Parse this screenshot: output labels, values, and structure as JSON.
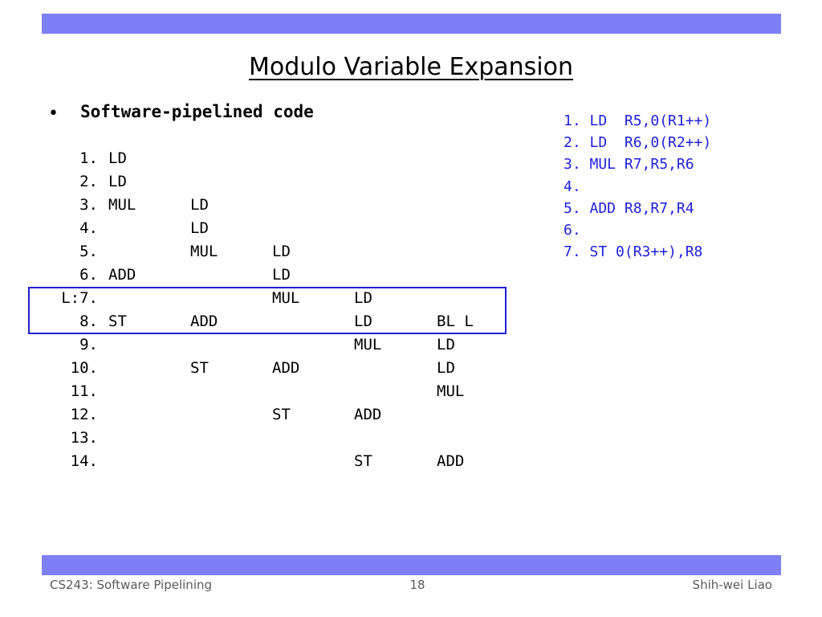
{
  "slide": {
    "title": "Modulo Variable Expansion",
    "bullet_marker": "•",
    "bullet_text": "Software-pipelined code"
  },
  "schedule": [
    {
      "num": "1.",
      "cells": [
        "LD",
        "",
        "",
        "",
        ""
      ]
    },
    {
      "num": "2.",
      "cells": [
        "LD",
        "",
        "",
        "",
        ""
      ]
    },
    {
      "num": "3.",
      "cells": [
        "MUL",
        "LD",
        "",
        "",
        ""
      ]
    },
    {
      "num": "4.",
      "cells": [
        "",
        "LD",
        "",
        "",
        ""
      ]
    },
    {
      "num": "5.",
      "cells": [
        "",
        "MUL",
        "LD",
        "",
        ""
      ]
    },
    {
      "num": "6.",
      "cells": [
        "ADD",
        "",
        "LD",
        "",
        ""
      ]
    },
    {
      "num": "L:7.",
      "cells": [
        "",
        "",
        "MUL",
        "LD",
        ""
      ]
    },
    {
      "num": "8.",
      "cells": [
        "ST",
        "ADD",
        "",
        "LD",
        "BL L"
      ]
    },
    {
      "num": "9.",
      "cells": [
        "",
        "",
        "",
        "MUL",
        "LD"
      ]
    },
    {
      "num": "10.",
      "cells": [
        "",
        "ST",
        "ADD",
        "",
        "LD"
      ]
    },
    {
      "num": "11.",
      "cells": [
        "",
        "",
        "",
        "",
        "MUL"
      ]
    },
    {
      "num": "12.",
      "cells": [
        "",
        "",
        "ST",
        "ADD",
        ""
      ]
    },
    {
      "num": "13.",
      "cells": [
        "",
        "",
        "",
        "",
        ""
      ]
    },
    {
      "num": "14.",
      "cells": [
        "",
        "",
        "",
        "ST",
        "ADD"
      ]
    }
  ],
  "original_code": [
    "1. LD  R5,0(R1++)",
    "2. LD  R6,0(R2++)",
    "3. MUL R7,R5,R6",
    "4.",
    "5. ADD R8,R7,R4",
    "6.",
    "7. ST 0(R3++),R8"
  ],
  "footer": {
    "course": "CS243: Software Pipelining",
    "page_number": "18",
    "author": "Shih-wei Liao"
  },
  "colors": {
    "band": "#7f7ff5",
    "code_blue": "#1f1fdd",
    "box_border": "#1f1fcc"
  }
}
